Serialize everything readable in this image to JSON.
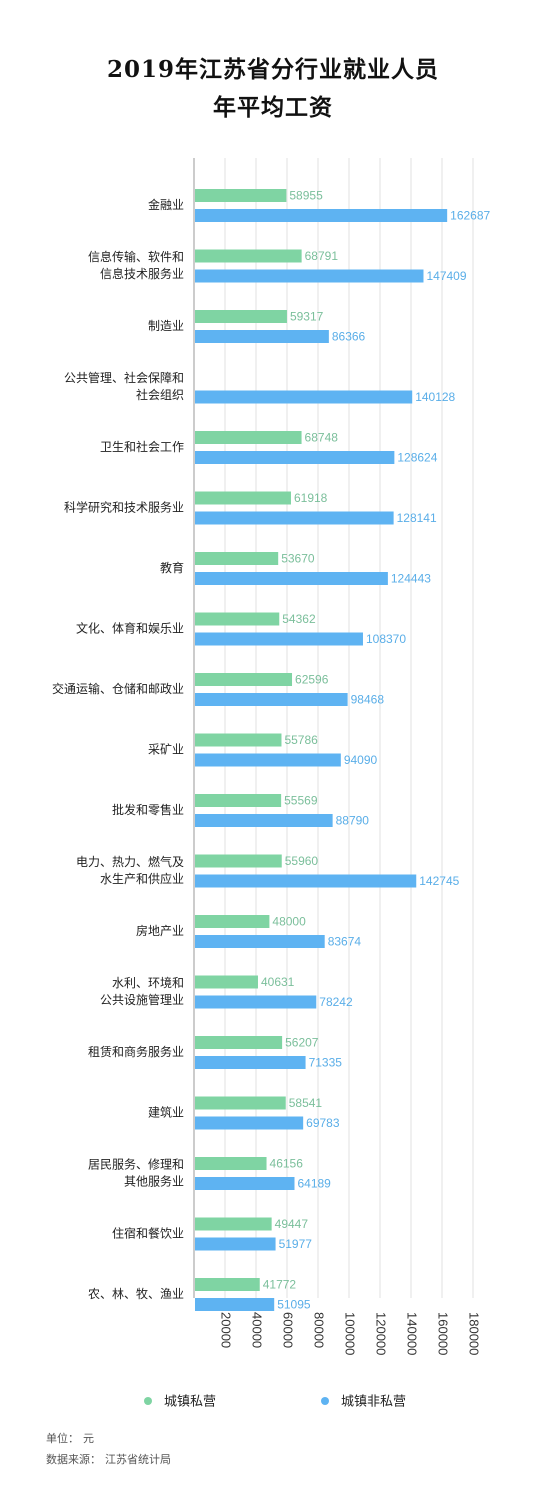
{
  "title": {
    "line1": "2019年江苏省分行业就业人员",
    "line2": "年平均工资"
  },
  "chart_data": {
    "type": "bar",
    "orientation": "horizontal",
    "title": "2019年江苏省分行业就业人员年平均工资",
    "categories": [
      [
        "金融业"
      ],
      [
        "信息传输、软件和",
        "信息技术服务业"
      ],
      [
        "制造业"
      ],
      [
        "公共管理、社会保障和",
        "社会组织"
      ],
      [
        "卫生和社会工作"
      ],
      [
        "科学研究和技术服务业"
      ],
      [
        "教育"
      ],
      [
        "文化、体育和娱乐业"
      ],
      [
        "交通运输、仓储和邮政业"
      ],
      [
        "采矿业"
      ],
      [
        "批发和零售业"
      ],
      [
        "电力、热力、燃气及",
        "水生产和供应业"
      ],
      [
        "房地产业"
      ],
      [
        "水利、环境和",
        "公共设施管理业"
      ],
      [
        "租赁和商务服务业"
      ],
      [
        "建筑业"
      ],
      [
        "居民服务、修理和",
        "其他服务业"
      ],
      [
        "住宿和餐饮业"
      ],
      [
        "农、林、牧、渔业"
      ]
    ],
    "series": [
      {
        "name": "城镇私营",
        "color": "#7fd4a3",
        "label_color": "#7bbf9b",
        "values": [
          58955,
          68791,
          59317,
          null,
          68748,
          61918,
          53670,
          54362,
          62596,
          55786,
          55569,
          55960,
          48000,
          40631,
          56207,
          58541,
          46156,
          49447,
          41772
        ]
      },
      {
        "name": "城镇非私营",
        "color": "#5eb3f2",
        "label_color": "#5aaee8",
        "values": [
          162687,
          147409,
          86366,
          140128,
          128624,
          128141,
          124443,
          108370,
          98468,
          94090,
          88790,
          142745,
          83674,
          78242,
          71335,
          69783,
          64189,
          51977,
          51095
        ]
      }
    ],
    "x_ticks": [
      20000,
      40000,
      60000,
      80000,
      100000,
      120000,
      140000,
      160000,
      180000
    ],
    "xlim": [
      0,
      180000
    ],
    "grid": true,
    "legend_position": "bottom"
  },
  "footer": {
    "unit_label": "单位：",
    "unit_value": "元",
    "source_label": "数据来源：",
    "source_value": "江苏省统计局"
  }
}
